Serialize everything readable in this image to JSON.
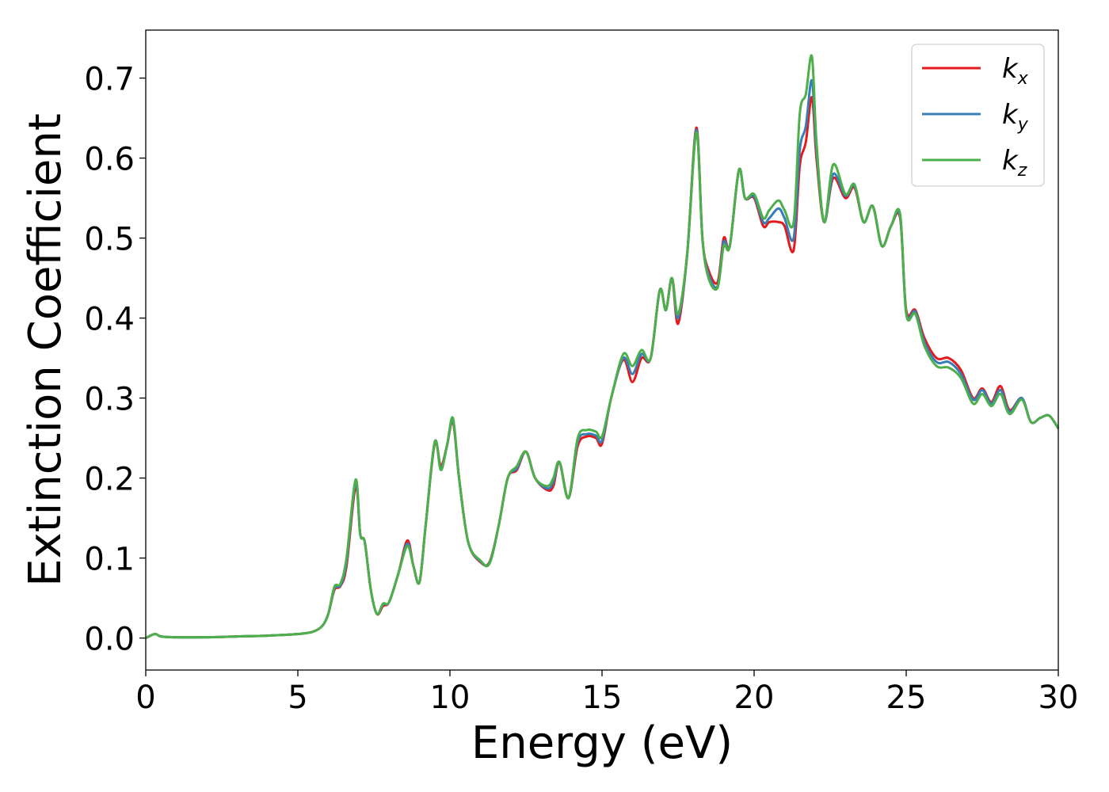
{
  "chart_data": {
    "type": "line",
    "title": "",
    "xlabel": "Energy (eV)",
    "ylabel": "Extinction Coefficient",
    "xlim": [
      0,
      30
    ],
    "ylim": [
      -0.04,
      0.76
    ],
    "xticks": [
      0,
      5,
      10,
      15,
      20,
      25,
      30
    ],
    "xtick_labels": [
      "0",
      "5",
      "10",
      "15",
      "20",
      "25",
      "30"
    ],
    "yticks": [
      0.0,
      0.1,
      0.2,
      0.3,
      0.4,
      0.5,
      0.6,
      0.7
    ],
    "ytick_labels": [
      "0.0",
      "0.1",
      "0.2",
      "0.3",
      "0.4",
      "0.5",
      "0.6",
      "0.7"
    ],
    "grid": false,
    "legend_position": "top-right",
    "colors": {
      "kx": "#e41a1c",
      "ky": "#377eb8",
      "kz": "#4daf4a"
    },
    "x": [
      0,
      0.3,
      0.5,
      1,
      2,
      3,
      4,
      5,
      5.5,
      5.8,
      6,
      6.2,
      6.4,
      6.6,
      6.9,
      7.05,
      7.2,
      7.4,
      7.6,
      7.8,
      8.0,
      8.3,
      8.6,
      8.8,
      9.0,
      9.2,
      9.5,
      9.7,
      9.9,
      10.1,
      10.3,
      10.6,
      11.0,
      11.3,
      11.6,
      11.9,
      12.2,
      12.5,
      12.8,
      13.2,
      13.4,
      13.6,
      13.9,
      14.2,
      14.5,
      14.8,
      15.0,
      15.3,
      15.7,
      16.0,
      16.3,
      16.6,
      16.9,
      17.1,
      17.3,
      17.5,
      17.8,
      18.1,
      18.3,
      18.5,
      18.8,
      19.0,
      19.2,
      19.5,
      19.7,
      20.0,
      20.3,
      20.5,
      20.8,
      21.0,
      21.3,
      21.5,
      21.7,
      21.9,
      22.05,
      22.3,
      22.6,
      23.0,
      23.3,
      23.6,
      23.9,
      24.2,
      24.5,
      24.8,
      25.0,
      25.3,
      25.6,
      26.0,
      26.4,
      26.8,
      27.2,
      27.5,
      27.8,
      28.1,
      28.4,
      28.8,
      29.1,
      29.4,
      29.7,
      30.0
    ],
    "series": [
      {
        "name": "kx",
        "values": [
          0.0,
          0.005,
          0.002,
          0.001,
          0.001,
          0.002,
          0.003,
          0.005,
          0.008,
          0.015,
          0.03,
          0.06,
          0.065,
          0.09,
          0.19,
          0.13,
          0.12,
          0.06,
          0.03,
          0.04,
          0.045,
          0.08,
          0.122,
          0.09,
          0.07,
          0.14,
          0.243,
          0.215,
          0.24,
          0.27,
          0.2,
          0.12,
          0.095,
          0.095,
          0.14,
          0.2,
          0.21,
          0.233,
          0.2,
          0.185,
          0.19,
          0.22,
          0.175,
          0.24,
          0.252,
          0.25,
          0.243,
          0.3,
          0.348,
          0.32,
          0.35,
          0.35,
          0.435,
          0.41,
          0.45,
          0.393,
          0.48,
          0.638,
          0.5,
          0.46,
          0.445,
          0.5,
          0.49,
          0.585,
          0.55,
          0.55,
          0.515,
          0.52,
          0.52,
          0.515,
          0.485,
          0.59,
          0.62,
          0.676,
          0.6,
          0.52,
          0.575,
          0.55,
          0.563,
          0.52,
          0.54,
          0.49,
          0.515,
          0.525,
          0.41,
          0.41,
          0.375,
          0.35,
          0.35,
          0.335,
          0.3,
          0.312,
          0.295,
          0.315,
          0.285,
          0.3,
          0.27,
          0.275,
          0.278,
          0.262
        ]
      },
      {
        "name": "ky",
        "values": [
          0.0,
          0.005,
          0.002,
          0.001,
          0.001,
          0.002,
          0.003,
          0.005,
          0.008,
          0.015,
          0.03,
          0.062,
          0.066,
          0.095,
          0.195,
          0.13,
          0.12,
          0.06,
          0.03,
          0.042,
          0.045,
          0.08,
          0.118,
          0.09,
          0.07,
          0.14,
          0.245,
          0.212,
          0.24,
          0.272,
          0.2,
          0.12,
          0.096,
          0.094,
          0.14,
          0.2,
          0.212,
          0.233,
          0.2,
          0.187,
          0.195,
          0.22,
          0.175,
          0.245,
          0.255,
          0.253,
          0.247,
          0.3,
          0.35,
          0.33,
          0.355,
          0.35,
          0.435,
          0.41,
          0.45,
          0.4,
          0.48,
          0.635,
          0.5,
          0.455,
          0.44,
          0.495,
          0.49,
          0.585,
          0.55,
          0.552,
          0.52,
          0.525,
          0.537,
          0.525,
          0.5,
          0.61,
          0.64,
          0.697,
          0.61,
          0.52,
          0.58,
          0.553,
          0.565,
          0.52,
          0.54,
          0.49,
          0.515,
          0.527,
          0.407,
          0.408,
          0.37,
          0.345,
          0.345,
          0.33,
          0.298,
          0.31,
          0.293,
          0.31,
          0.283,
          0.3,
          0.27,
          0.275,
          0.278,
          0.262
        ]
      },
      {
        "name": "kz",
        "values": [
          0.0,
          0.005,
          0.002,
          0.001,
          0.001,
          0.002,
          0.003,
          0.005,
          0.008,
          0.015,
          0.03,
          0.064,
          0.068,
          0.1,
          0.198,
          0.13,
          0.12,
          0.06,
          0.03,
          0.043,
          0.045,
          0.08,
          0.115,
          0.09,
          0.07,
          0.14,
          0.245,
          0.21,
          0.24,
          0.275,
          0.2,
          0.12,
          0.097,
          0.093,
          0.14,
          0.2,
          0.215,
          0.233,
          0.2,
          0.19,
          0.2,
          0.22,
          0.175,
          0.25,
          0.26,
          0.258,
          0.252,
          0.3,
          0.355,
          0.34,
          0.36,
          0.35,
          0.435,
          0.41,
          0.45,
          0.405,
          0.48,
          0.632,
          0.5,
          0.45,
          0.438,
          0.49,
          0.49,
          0.585,
          0.55,
          0.555,
          0.525,
          0.535,
          0.547,
          0.535,
          0.52,
          0.655,
          0.68,
          0.727,
          0.62,
          0.52,
          0.592,
          0.555,
          0.567,
          0.52,
          0.54,
          0.49,
          0.515,
          0.53,
          0.405,
          0.405,
          0.365,
          0.34,
          0.338,
          0.325,
          0.293,
          0.305,
          0.29,
          0.305,
          0.28,
          0.298,
          0.27,
          0.275,
          0.278,
          0.262
        ]
      }
    ]
  },
  "legend": [
    {
      "base": "k",
      "sub": "x"
    },
    {
      "base": "k",
      "sub": "y"
    },
    {
      "base": "k",
      "sub": "z"
    }
  ]
}
